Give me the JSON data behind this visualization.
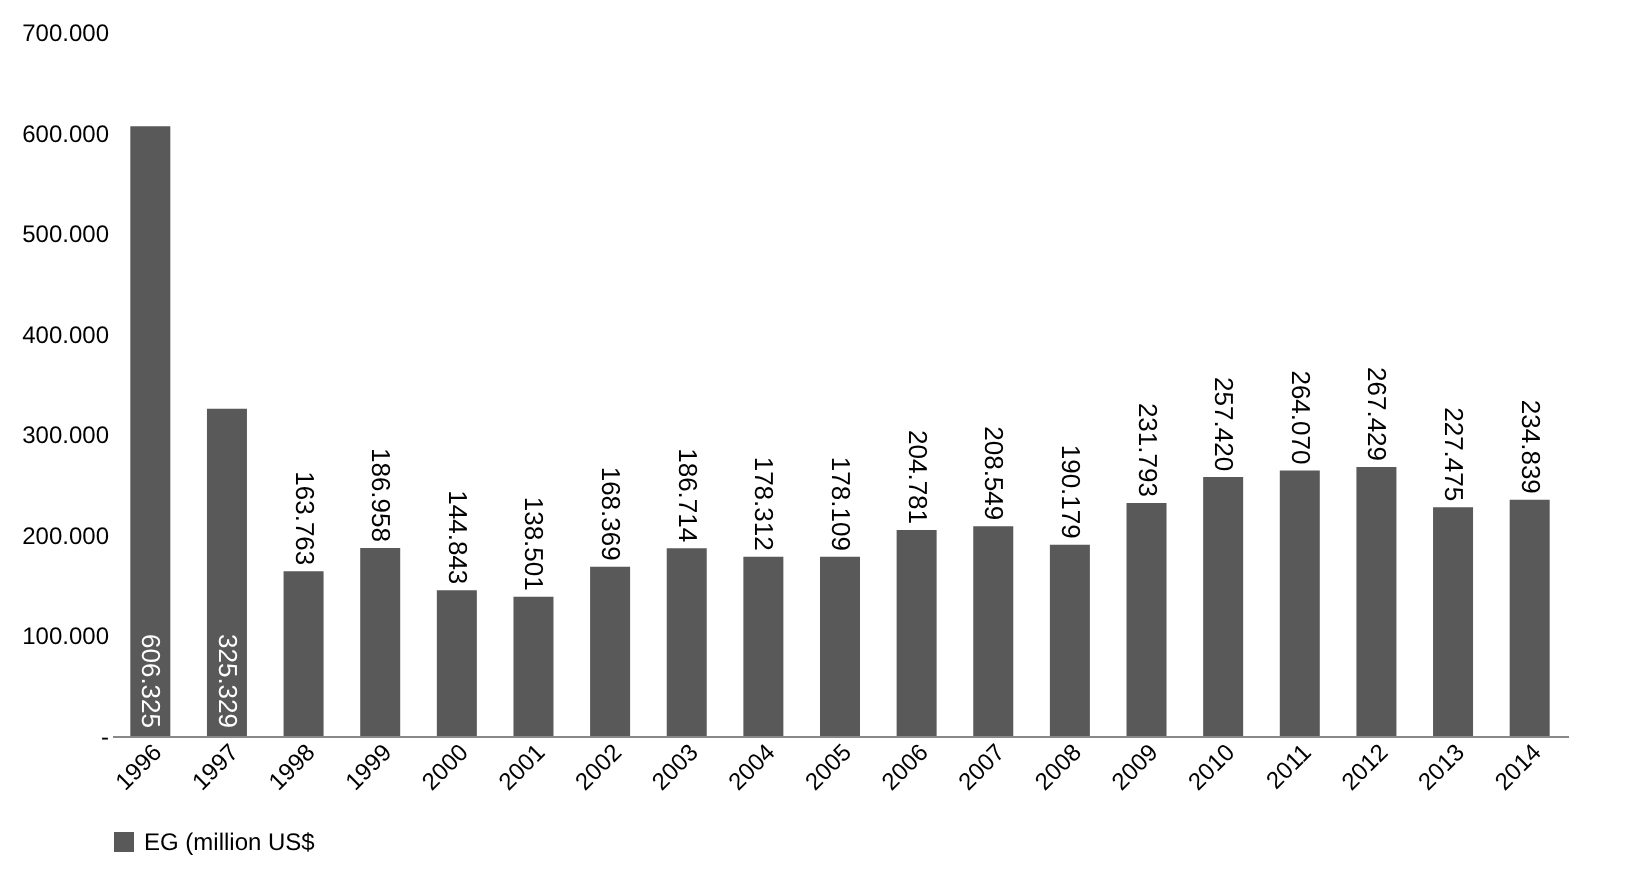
{
  "chart_data": {
    "type": "bar",
    "categories": [
      "1996",
      "1997",
      "1998",
      "1999",
      "2000",
      "2001",
      "2002",
      "2003",
      "2004",
      "2005",
      "2006",
      "2007",
      "2008",
      "2009",
      "2010",
      "2011",
      "2012",
      "2013",
      "2014"
    ],
    "series": [
      {
        "name": "EG (million US$",
        "color": "#595959",
        "values": [
          606.325,
          325.329,
          163.763,
          186.958,
          144.843,
          138.501,
          168.369,
          186.714,
          178.312,
          178.109,
          204.781,
          208.549,
          190.179,
          231.793,
          257.42,
          264.07,
          267.429,
          227.475,
          234.839
        ],
        "value_labels": [
          "606.325",
          "325.329",
          "163.763",
          "186.958",
          "144.843",
          "138.501",
          "168.369",
          "186.714",
          "178.312",
          "178.109",
          "204.781",
          "208.549",
          "190.179",
          "231.793",
          "257.420",
          "264.070",
          "267.429",
          "227.475",
          "234.839"
        ]
      }
    ],
    "ylim": [
      0,
      700
    ],
    "yticks": [
      {
        "value": 0,
        "label": "-"
      },
      {
        "value": 100,
        "label": "100.000"
      },
      {
        "value": 200,
        "label": "200.000"
      },
      {
        "value": 300,
        "label": "300.000"
      },
      {
        "value": 400,
        "label": "400.000"
      },
      {
        "value": 500,
        "label": "500.000"
      },
      {
        "value": 600,
        "label": "600.000"
      },
      {
        "value": 700,
        "label": "700.000"
      }
    ],
    "grid": false,
    "legend": "bottom"
  }
}
